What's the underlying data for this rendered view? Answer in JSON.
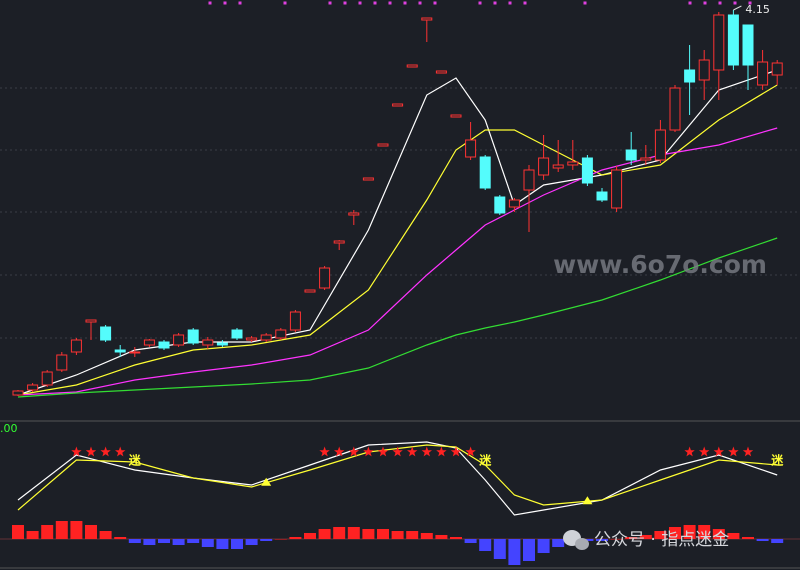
{
  "chart_data": [
    {
      "type": "candlestick",
      "up_color": "#ff3333",
      "down_color": "#54fcfc",
      "ylim": [
        2.1,
        4.2
      ],
      "gridlines": [
        3.76,
        3.45,
        3.14,
        2.825,
        2.51
      ],
      "open": [
        2.225,
        2.25,
        2.275,
        2.35,
        2.44,
        2.59,
        2.565,
        2.45,
        2.44,
        2.475,
        2.49,
        2.475,
        2.55,
        2.475,
        2.485,
        2.55,
        2.5,
        2.5,
        2.51,
        2.55,
        2.74,
        2.76,
        2.985,
        3.125,
        3.3,
        3.47,
        3.67,
        3.865,
        4.1,
        3.835,
        3.615,
        3.415,
        3.415,
        3.215,
        3.165,
        3.25,
        3.325,
        3.36,
        3.375,
        3.41,
        3.24,
        3.16,
        3.45,
        3.4,
        3.4,
        3.55,
        3.85,
        3.8,
        3.85,
        4.125,
        4.075,
        3.775,
        3.825
      ],
      "close": [
        2.245,
        2.275,
        2.34,
        2.425,
        2.5,
        2.6,
        2.5,
        2.44,
        2.44,
        2.5,
        2.46,
        2.525,
        2.485,
        2.5,
        2.475,
        2.51,
        2.51,
        2.525,
        2.55,
        2.64,
        2.75,
        2.86,
        2.995,
        3.135,
        3.31,
        3.48,
        3.68,
        3.875,
        4.11,
        3.845,
        3.625,
        3.5,
        3.26,
        3.135,
        3.2,
        3.35,
        3.41,
        3.375,
        3.39,
        3.285,
        3.2,
        3.35,
        3.4,
        3.41,
        3.55,
        3.76,
        3.79,
        3.9,
        4.125,
        3.875,
        3.875,
        3.89,
        3.885
      ],
      "high": [
        2.25,
        2.285,
        2.35,
        2.44,
        2.51,
        2.6,
        2.575,
        2.475,
        2.465,
        2.505,
        2.5,
        2.535,
        2.56,
        2.515,
        2.5,
        2.56,
        2.52,
        2.535,
        2.56,
        2.65,
        2.75,
        2.87,
        3.0,
        3.15,
        3.31,
        3.48,
        3.68,
        3.875,
        4.11,
        3.845,
        3.625,
        3.59,
        3.425,
        3.225,
        3.21,
        3.375,
        3.525,
        3.5,
        3.5,
        3.425,
        3.26,
        3.37,
        3.54,
        3.475,
        3.6,
        3.775,
        3.975,
        3.95,
        4.14,
        4.15,
        4.075,
        3.95,
        3.9
      ],
      "low": [
        2.22,
        2.24,
        2.265,
        2.34,
        2.425,
        2.5,
        2.49,
        2.415,
        2.415,
        2.465,
        2.45,
        2.465,
        2.475,
        2.455,
        2.465,
        2.5,
        2.49,
        2.49,
        2.5,
        2.54,
        2.74,
        2.75,
        2.95,
        3.075,
        3.3,
        3.47,
        3.67,
        3.865,
        3.99,
        3.835,
        3.615,
        3.4,
        3.25,
        3.125,
        3.14,
        3.04,
        3.3,
        3.34,
        3.35,
        3.27,
        3.19,
        3.14,
        3.375,
        3.375,
        3.385,
        3.54,
        3.625,
        3.7,
        3.7,
        3.85,
        3.75,
        3.75,
        3.775
      ],
      "series": [
        {
          "color": "#ffffff",
          "x": [
            0,
            4,
            8,
            12,
            16,
            20,
            24,
            28,
            30,
            32,
            34,
            36,
            40,
            44,
            48,
            52
          ],
          "values": [
            2.225,
            2.325,
            2.45,
            2.49,
            2.49,
            2.55,
            3.05,
            3.725,
            3.81,
            3.6,
            3.175,
            3.275,
            3.325,
            3.4,
            3.75,
            3.85
          ]
        },
        {
          "color": "#ffff33",
          "x": [
            0,
            4,
            8,
            12,
            16,
            20,
            24,
            28,
            30,
            32,
            34,
            36,
            40,
            44,
            48,
            52
          ],
          "values": [
            2.225,
            2.275,
            2.375,
            2.45,
            2.475,
            2.525,
            2.75,
            3.2,
            3.45,
            3.55,
            3.55,
            3.475,
            3.325,
            3.375,
            3.6,
            3.775
          ]
        },
        {
          "color": "#ff33ff",
          "x": [
            0,
            4,
            8,
            12,
            16,
            20,
            24,
            28,
            30,
            32,
            34,
            36,
            40,
            44,
            48,
            52
          ],
          "values": [
            2.225,
            2.24,
            2.3,
            2.34,
            2.375,
            2.425,
            2.55,
            2.825,
            2.95,
            3.075,
            3.15,
            3.225,
            3.35,
            3.425,
            3.475,
            3.56
          ]
        },
        {
          "color": "#33dd33",
          "x": [
            0,
            4,
            8,
            12,
            16,
            20,
            24,
            28,
            30,
            32,
            34,
            36,
            40,
            44,
            48,
            52
          ],
          "values": [
            2.215,
            2.235,
            2.25,
            2.265,
            2.28,
            2.3,
            2.36,
            2.475,
            2.525,
            2.56,
            2.59,
            2.625,
            2.7,
            2.8,
            2.91,
            3.01
          ]
        }
      ]
    },
    {
      "type": "oscillator",
      "label": ".00",
      "ylim": [
        -29,
        114
      ],
      "series": [
        {
          "color": "#ffffff",
          "x": [
            0,
            4,
            8,
            12,
            16,
            20,
            24,
            28,
            30,
            32,
            34,
            36,
            40,
            44,
            48,
            52
          ],
          "values": [
            39,
            84,
            69,
            61,
            54,
            74,
            94,
            97,
            91,
            59,
            24,
            29,
            39,
            69,
            84,
            64
          ]
        },
        {
          "color": "#ffff33",
          "x": [
            0,
            4,
            8,
            12,
            16,
            20,
            24,
            28,
            30,
            32,
            34,
            36,
            40,
            44,
            48,
            52
          ],
          "values": [
            29,
            79,
            77,
            61,
            52,
            69,
            87,
            94,
            92,
            74,
            44,
            34,
            39,
            59,
            79,
            74
          ]
        }
      ],
      "histogram": {
        "up_color": "#ff2222",
        "down_color": "#4444ff",
        "values": [
          14,
          8,
          14,
          18,
          18,
          14,
          8,
          2,
          -4,
          -6,
          -4,
          -6,
          -4,
          -8,
          -10,
          -10,
          -6,
          -2,
          0,
          2,
          6,
          10,
          12,
          12,
          10,
          10,
          8,
          8,
          6,
          4,
          2,
          -4,
          -12,
          -20,
          -26,
          -22,
          -14,
          -8,
          -4,
          -2,
          -2,
          0,
          2,
          4,
          8,
          12,
          14,
          14,
          10,
          6,
          2,
          -2,
          -4
        ]
      },
      "star_signals": [
        4,
        5,
        6,
        7,
        21,
        22,
        23,
        24,
        25,
        26,
        27,
        28,
        29,
        30,
        31,
        46,
        47,
        48,
        49,
        50
      ],
      "cross_signals": [
        17,
        39
      ],
      "signal_text": "迷",
      "escape_signals": [
        8,
        32,
        52
      ]
    }
  ],
  "watermark": "www.6o7o.com",
  "account": "公众号 · 指点迷金"
}
